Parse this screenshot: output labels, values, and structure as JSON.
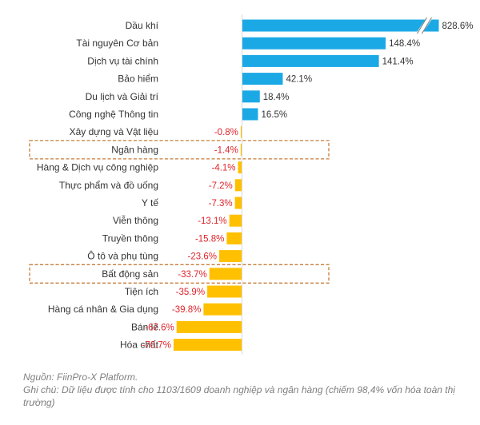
{
  "chart_data": {
    "type": "bar",
    "orientation": "horizontal",
    "categories": [
      "Dầu khí",
      "Tài nguyên Cơ bản",
      "Dịch vụ tài chính",
      "Bảo hiểm",
      "Du lịch và Giải trí",
      "Công nghệ Thông tin",
      "Xây dựng và Vật liệu",
      "Ngân hàng",
      "Hàng & Dịch vụ công nghiệp",
      "Thực phẩm và đồ uống",
      "Y tế",
      "Viễn thông",
      "Truyền thông",
      "Ô tô và phụ tùng",
      "Bất động sản",
      "Tiện ích",
      "Hàng cá nhân & Gia dụng",
      "Bán lẻ",
      "Hóa chất"
    ],
    "values": [
      828.6,
      148.4,
      141.4,
      42.1,
      18.4,
      16.5,
      -0.8,
      -1.4,
      -4.1,
      -7.2,
      -7.3,
      -13.1,
      -15.8,
      -23.6,
      -33.7,
      -35.9,
      -39.8,
      -67.6,
      -70.7
    ],
    "value_labels": [
      "828.6%",
      "148.4%",
      "141.4%",
      "42.1%",
      "18.4%",
      "16.5%",
      "-0.8%",
      "-1.4%",
      "-4.1%",
      "-7.2%",
      "-7.3%",
      "-13.1%",
      "-15.8%",
      "-23.6%",
      "-33.7%",
      "-35.9%",
      "-39.8%",
      "-67.6%",
      "-70.7%"
    ],
    "highlighted": [
      "Ngân hàng",
      "Bất động sản"
    ],
    "axis_break": "Dầu khí",
    "colors": {
      "positive": "#1BA9E6",
      "negative": "#FFC000",
      "negative_label": "#E0252B",
      "positive_label": "#333333",
      "highlight_border": "#C77B3A"
    }
  },
  "notes": {
    "source": "Nguồn: FiinPro-X Platform.",
    "note": "Ghi chú: Dữ liệu được tính cho 1103/1609 doanh nghiệp và ngân hàng (chiếm 98,4% vốn hóa toàn thị trường)"
  }
}
